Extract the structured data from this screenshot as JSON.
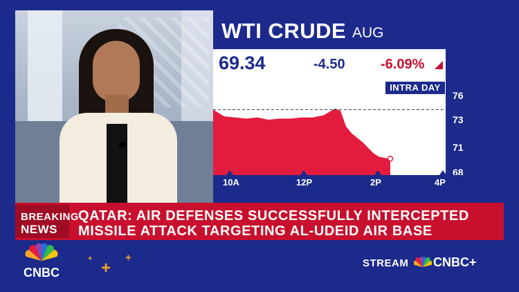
{
  "ticker": {
    "title": "WTI CRUDE",
    "contract": "AUG",
    "price": "69.34",
    "change": "-4.50",
    "percent_change": "-6.09%",
    "direction_icon": "down-triangle-icon",
    "chart_label": "INTRA DAY"
  },
  "chart_data": {
    "type": "area",
    "title": "",
    "x_ticks": [
      "10A",
      "12P",
      "2P",
      "4P"
    ],
    "y_ticks": [
      "76",
      "73",
      "71",
      "68"
    ],
    "ylim": [
      68,
      76
    ],
    "reference_line": 73.7,
    "x_range": [
      "9A",
      "4P"
    ],
    "series": [
      {
        "x": [
          "9:00",
          "9:20",
          "9:40",
          "10:00",
          "10:20",
          "10:40",
          "11:00",
          "11:20",
          "11:40",
          "12:00",
          "12:20",
          "12:40",
          "12:50",
          "13:00",
          "13:10",
          "13:30",
          "13:50",
          "14:00",
          "14:10",
          "14:20"
        ],
        "values": [
          73.7,
          73.1,
          73.0,
          72.9,
          73.0,
          72.8,
          72.9,
          72.9,
          73.0,
          73.0,
          73.2,
          73.8,
          73.6,
          72.2,
          71.6,
          70.8,
          69.8,
          69.5,
          69.4,
          69.34
        ]
      }
    ],
    "colors": {
      "below_reference": "#e31c3d",
      "above_reference": "#2dbd4f",
      "axis_bg": "#1c2a8c"
    },
    "grid": false
  },
  "lower_third": {
    "label_line1": "BREAKING",
    "label_line2": "NEWS",
    "headline_line1": "QATAR: AIR DEFENSES SUCCESSFULLY INTERCEPTED",
    "headline_line2": "MISSILE ATTACK TARGETING AL-UDEID AIR BASE"
  },
  "footer": {
    "network_logo": "CNBC",
    "stream_label": "STREAM",
    "stream_service": "CNBC+",
    "logo_icon": "peacock-icon"
  },
  "colors": {
    "brand_blue": "#1c2a8c",
    "breaking_red": "#c8102e",
    "accent_orange": "#f5a623"
  }
}
